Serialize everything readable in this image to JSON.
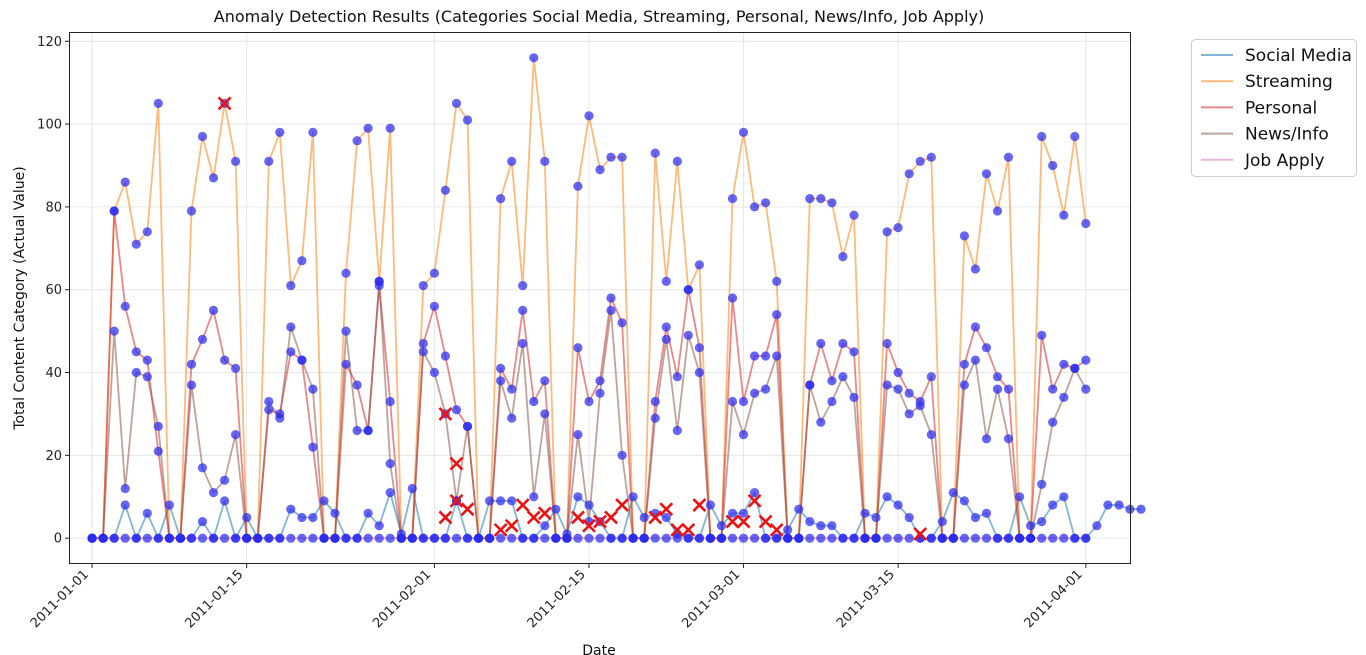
{
  "chart_data": {
    "type": "line",
    "title": "Anomaly Detection Results (Categories Social Media, Streaming, Personal, News/Info, Job Apply)",
    "xlabel": "Date",
    "ylabel": "Total Content Category (Actual Value)",
    "ylim": [
      -6,
      122
    ],
    "yticks": [
      0,
      20,
      40,
      60,
      80,
      100,
      120
    ],
    "xlim": [
      "2010-12-30",
      "2011-04-05"
    ],
    "xticks": [
      "2011-01-01",
      "2011-01-15",
      "2011-02-01",
      "2011-02-15",
      "2011-03-01",
      "2011-03-15",
      "2011-04-01"
    ],
    "grid": true,
    "legend_position": "outside-top-right",
    "start_date": "2011-01-01",
    "series": [
      {
        "name": "Social Media",
        "color": "#1f77b4",
        "values": [
          0,
          0,
          0,
          8,
          0,
          6,
          0,
          8,
          0,
          0,
          4,
          0,
          9,
          0,
          5,
          0,
          0,
          0,
          7,
          5,
          5,
          9,
          6,
          0,
          0,
          6,
          3,
          11,
          1,
          12,
          0,
          0,
          0,
          9,
          0,
          0,
          9,
          9,
          9,
          0,
          0,
          3,
          7,
          1,
          10,
          8,
          4,
          0,
          0,
          10,
          5,
          6,
          5,
          1,
          0,
          0,
          8,
          3,
          6,
          6,
          11,
          0,
          0,
          2,
          7,
          4,
          3,
          3,
          0,
          0,
          6,
          5,
          10,
          8,
          5,
          0,
          0,
          4,
          11,
          9,
          5,
          6,
          0,
          0,
          10,
          3,
          4,
          8,
          10,
          0,
          0,
          3,
          8,
          8,
          7,
          7
        ]
      },
      {
        "name": "Streaming",
        "color": "#ff7f0e",
        "values": [
          0,
          0,
          79,
          86,
          71,
          74,
          105,
          0,
          0,
          79,
          97,
          87,
          105,
          91,
          0,
          0,
          91,
          98,
          61,
          67,
          98,
          0,
          0,
          64,
          96,
          99,
          62,
          99,
          0,
          0,
          61,
          64,
          84,
          105,
          101,
          0,
          0,
          82,
          91,
          61,
          116,
          91,
          0,
          0,
          85,
          102,
          89,
          92,
          92,
          0,
          0,
          93,
          62,
          91,
          60,
          66,
          0,
          0,
          82,
          98,
          80,
          81,
          62,
          0,
          0,
          82,
          82,
          81,
          68,
          78,
          0,
          0,
          74,
          75,
          88,
          91,
          92,
          0,
          0,
          73,
          65,
          88,
          79,
          92,
          0,
          0,
          97,
          90,
          78,
          97,
          76
        ]
      },
      {
        "name": "Personal",
        "color": "#d62728",
        "values": [
          0,
          0,
          79,
          56,
          45,
          43,
          21,
          0,
          0,
          42,
          48,
          55,
          43,
          41,
          0,
          0,
          31,
          30,
          45,
          43,
          22,
          0,
          0,
          42,
          37,
          26,
          61,
          33,
          0,
          0,
          47,
          56,
          44,
          31,
          27,
          0,
          0,
          41,
          36,
          55,
          33,
          38,
          0,
          0,
          46,
          33,
          38,
          58,
          52,
          0,
          0,
          33,
          51,
          39,
          60,
          46,
          0,
          0,
          58,
          33,
          44,
          44,
          54,
          0,
          0,
          37,
          47,
          38,
          47,
          45,
          0,
          0,
          47,
          40,
          35,
          33,
          39,
          0,
          0,
          42,
          51,
          46,
          39,
          36,
          0,
          0,
          49,
          36,
          42,
          41,
          43
        ]
      },
      {
        "name": "News/Info",
        "color": "#8c564b",
        "values": [
          0,
          0,
          50,
          12,
          40,
          39,
          27,
          0,
          0,
          37,
          17,
          11,
          14,
          25,
          0,
          0,
          33,
          29,
          51,
          43,
          36,
          0,
          0,
          50,
          26,
          26,
          62,
          18,
          0,
          0,
          45,
          40,
          30,
          9,
          27,
          0,
          0,
          38,
          29,
          47,
          10,
          30,
          0,
          0,
          25,
          4,
          35,
          55,
          20,
          0,
          0,
          29,
          48,
          26,
          49,
          40,
          0,
          0,
          33,
          25,
          35,
          36,
          44,
          0,
          0,
          37,
          28,
          33,
          39,
          34,
          0,
          0,
          37,
          36,
          30,
          32,
          25,
          0,
          0,
          37,
          43,
          24,
          36,
          24,
          0,
          0,
          13,
          28,
          34,
          41,
          36
        ]
      },
      {
        "name": "Job Apply",
        "color": "#e377c2",
        "values": [
          0,
          0,
          0,
          0,
          0,
          0,
          0,
          0,
          0,
          0,
          0,
          0,
          0,
          0,
          0,
          0,
          0,
          0,
          0,
          0,
          0,
          0,
          0,
          0,
          0,
          0,
          0,
          0,
          0,
          0,
          0,
          0,
          0,
          0,
          0,
          0,
          0,
          0,
          0,
          0,
          0,
          0,
          0,
          0,
          0,
          0,
          0,
          0,
          0,
          0,
          0,
          0,
          0,
          0,
          0,
          0,
          0,
          0,
          0,
          0,
          0,
          0,
          0,
          0,
          0,
          0,
          0,
          0,
          0,
          0,
          0,
          0,
          0,
          0,
          0,
          0,
          0,
          0,
          0,
          0,
          0,
          0,
          0,
          0,
          0,
          0,
          0,
          0,
          0,
          0,
          0
        ]
      }
    ],
    "point_color": "#2b2bf0",
    "anomaly_color": "#ee1111",
    "anomalies": [
      {
        "x": "2011-01-13",
        "y": 105
      },
      {
        "x": "2011-02-02",
        "y": 5
      },
      {
        "x": "2011-02-02",
        "y": 30
      },
      {
        "x": "2011-02-03",
        "y": 18
      },
      {
        "x": "2011-02-03",
        "y": 9
      },
      {
        "x": "2011-02-04",
        "y": 7
      },
      {
        "x": "2011-02-07",
        "y": 2
      },
      {
        "x": "2011-02-08",
        "y": 3
      },
      {
        "x": "2011-02-09",
        "y": 8
      },
      {
        "x": "2011-02-10",
        "y": 5
      },
      {
        "x": "2011-02-11",
        "y": 6
      },
      {
        "x": "2011-02-14",
        "y": 5
      },
      {
        "x": "2011-02-15",
        "y": 3
      },
      {
        "x": "2011-02-16",
        "y": 4
      },
      {
        "x": "2011-02-17",
        "y": 5
      },
      {
        "x": "2011-02-18",
        "y": 8
      },
      {
        "x": "2011-02-21",
        "y": 5
      },
      {
        "x": "2011-02-22",
        "y": 7
      },
      {
        "x": "2011-02-23",
        "y": 2
      },
      {
        "x": "2011-02-24",
        "y": 2
      },
      {
        "x": "2011-02-25",
        "y": 8
      },
      {
        "x": "2011-02-28",
        "y": 4
      },
      {
        "x": "2011-03-01",
        "y": 4
      },
      {
        "x": "2011-03-02",
        "y": 9
      },
      {
        "x": "2011-03-03",
        "y": 4
      },
      {
        "x": "2011-03-04",
        "y": 2
      },
      {
        "x": "2011-03-17",
        "y": 1
      }
    ]
  }
}
